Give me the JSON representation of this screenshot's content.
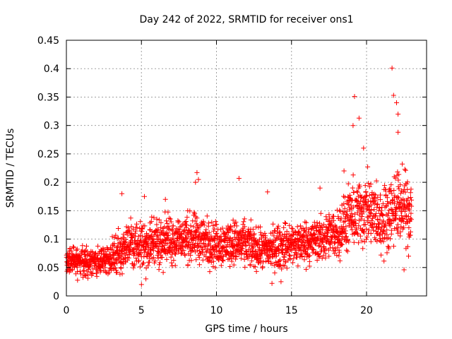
{
  "chart_data": {
    "type": "scatter",
    "title": "Day 242 of 2022, SRMTID for receiver ons1",
    "xlabel": "GPS time / hours",
    "ylabel": "SRMTID / TECUs",
    "xlim": [
      0,
      24
    ],
    "ylim": [
      0,
      0.45
    ],
    "xticks": [
      0,
      5,
      10,
      15,
      20
    ],
    "xtick_labels": [
      "0",
      "5",
      "10",
      "15",
      "20"
    ],
    "yticks": [
      0,
      0.05,
      0.1,
      0.15,
      0.2,
      0.25,
      0.3,
      0.35,
      0.4,
      0.45
    ],
    "ytick_labels": [
      "0",
      "0.05",
      "0.1",
      "0.15",
      "0.2",
      "0.25",
      "0.3",
      "0.35",
      "0.4",
      "0.45"
    ],
    "grid": true,
    "marker": "+",
    "color": "#ff0000",
    "series": [
      {
        "name": "SRMTID",
        "envelope": [
          {
            "t": 0.0,
            "mean": 0.06,
            "spread": 0.025
          },
          {
            "t": 1.0,
            "mean": 0.06,
            "spread": 0.025
          },
          {
            "t": 2.0,
            "mean": 0.058,
            "spread": 0.025
          },
          {
            "t": 3.0,
            "mean": 0.065,
            "spread": 0.03
          },
          {
            "t": 4.0,
            "mean": 0.09,
            "spread": 0.04
          },
          {
            "t": 5.0,
            "mean": 0.09,
            "spread": 0.045
          },
          {
            "t": 6.0,
            "mean": 0.095,
            "spread": 0.045
          },
          {
            "t": 7.0,
            "mean": 0.1,
            "spread": 0.045
          },
          {
            "t": 8.0,
            "mean": 0.1,
            "spread": 0.045
          },
          {
            "t": 9.0,
            "mean": 0.1,
            "spread": 0.045
          },
          {
            "t": 10.0,
            "mean": 0.09,
            "spread": 0.04
          },
          {
            "t": 11.0,
            "mean": 0.095,
            "spread": 0.04
          },
          {
            "t": 12.0,
            "mean": 0.09,
            "spread": 0.04
          },
          {
            "t": 13.0,
            "mean": 0.08,
            "spread": 0.035
          },
          {
            "t": 14.0,
            "mean": 0.085,
            "spread": 0.04
          },
          {
            "t": 15.0,
            "mean": 0.09,
            "spread": 0.04
          },
          {
            "t": 16.0,
            "mean": 0.095,
            "spread": 0.04
          },
          {
            "t": 17.0,
            "mean": 0.1,
            "spread": 0.04
          },
          {
            "t": 18.0,
            "mean": 0.11,
            "spread": 0.045
          },
          {
            "t": 19.0,
            "mean": 0.14,
            "spread": 0.06
          },
          {
            "t": 20.0,
            "mean": 0.15,
            "spread": 0.065
          },
          {
            "t": 21.0,
            "mean": 0.13,
            "spread": 0.06
          },
          {
            "t": 22.0,
            "mean": 0.16,
            "spread": 0.065
          },
          {
            "t": 23.0,
            "mean": 0.15,
            "spread": 0.06
          }
        ],
        "peaks": [
          {
            "x": 3.7,
            "y": 0.18
          },
          {
            "x": 5.2,
            "y": 0.175
          },
          {
            "x": 6.6,
            "y": 0.17
          },
          {
            "x": 8.6,
            "y": 0.2
          },
          {
            "x": 8.7,
            "y": 0.217
          },
          {
            "x": 8.8,
            "y": 0.205
          },
          {
            "x": 11.5,
            "y": 0.207
          },
          {
            "x": 13.4,
            "y": 0.183
          },
          {
            "x": 16.9,
            "y": 0.19
          },
          {
            "x": 18.5,
            "y": 0.22
          },
          {
            "x": 19.1,
            "y": 0.3
          },
          {
            "x": 19.2,
            "y": 0.351
          },
          {
            "x": 19.5,
            "y": 0.313
          },
          {
            "x": 19.8,
            "y": 0.26
          },
          {
            "x": 21.7,
            "y": 0.401
          },
          {
            "x": 21.8,
            "y": 0.353
          },
          {
            "x": 22.0,
            "y": 0.34
          },
          {
            "x": 22.1,
            "y": 0.32
          },
          {
            "x": 22.1,
            "y": 0.288
          }
        ],
        "dips": [
          {
            "x": 5.0,
            "y": 0.02
          },
          {
            "x": 5.3,
            "y": 0.03
          },
          {
            "x": 13.7,
            "y": 0.022
          },
          {
            "x": 14.3,
            "y": 0.025
          },
          {
            "x": 22.5,
            "y": 0.046
          },
          {
            "x": 22.8,
            "y": 0.07
          }
        ],
        "point_count": 2300
      }
    ]
  }
}
